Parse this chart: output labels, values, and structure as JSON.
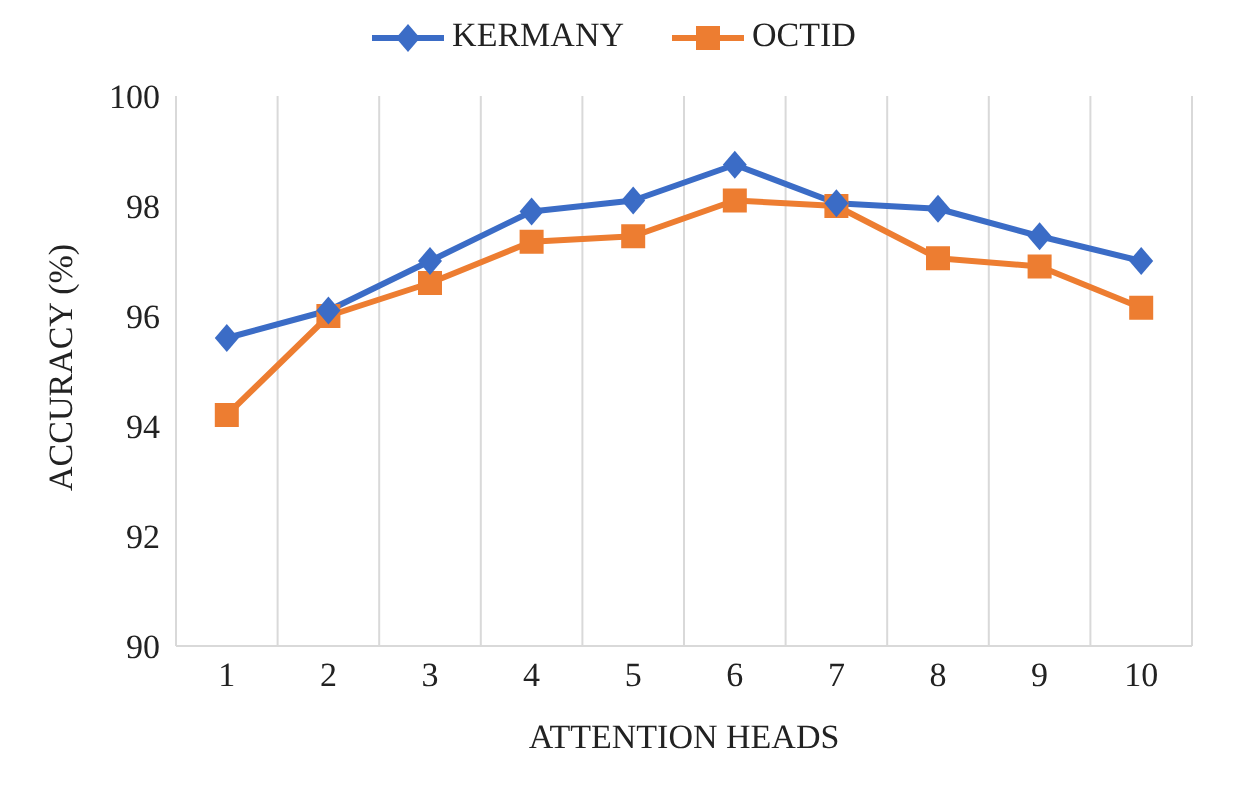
{
  "chart_data": {
    "type": "line",
    "xlabel": "ATTENTION HEADS",
    "ylabel": "ACCURACY (%)",
    "categories": [
      "1",
      "2",
      "3",
      "4",
      "5",
      "6",
      "7",
      "8",
      "9",
      "10"
    ],
    "series": [
      {
        "name": "KERMANY",
        "color": "#3b6cc6",
        "marker": "diamond",
        "values": [
          95.6,
          96.1,
          97.0,
          97.9,
          98.1,
          98.75,
          98.05,
          97.95,
          97.45,
          97.0
        ]
      },
      {
        "name": "OCTID",
        "color": "#ed7d31",
        "marker": "square",
        "values": [
          94.2,
          96.0,
          96.6,
          97.35,
          97.45,
          98.1,
          98.0,
          97.05,
          96.9,
          96.15
        ]
      }
    ],
    "ylim": [
      90,
      100
    ],
    "yticks": [
      90,
      92,
      94,
      96,
      98,
      100
    ],
    "grid": "x",
    "legend": "top"
  }
}
